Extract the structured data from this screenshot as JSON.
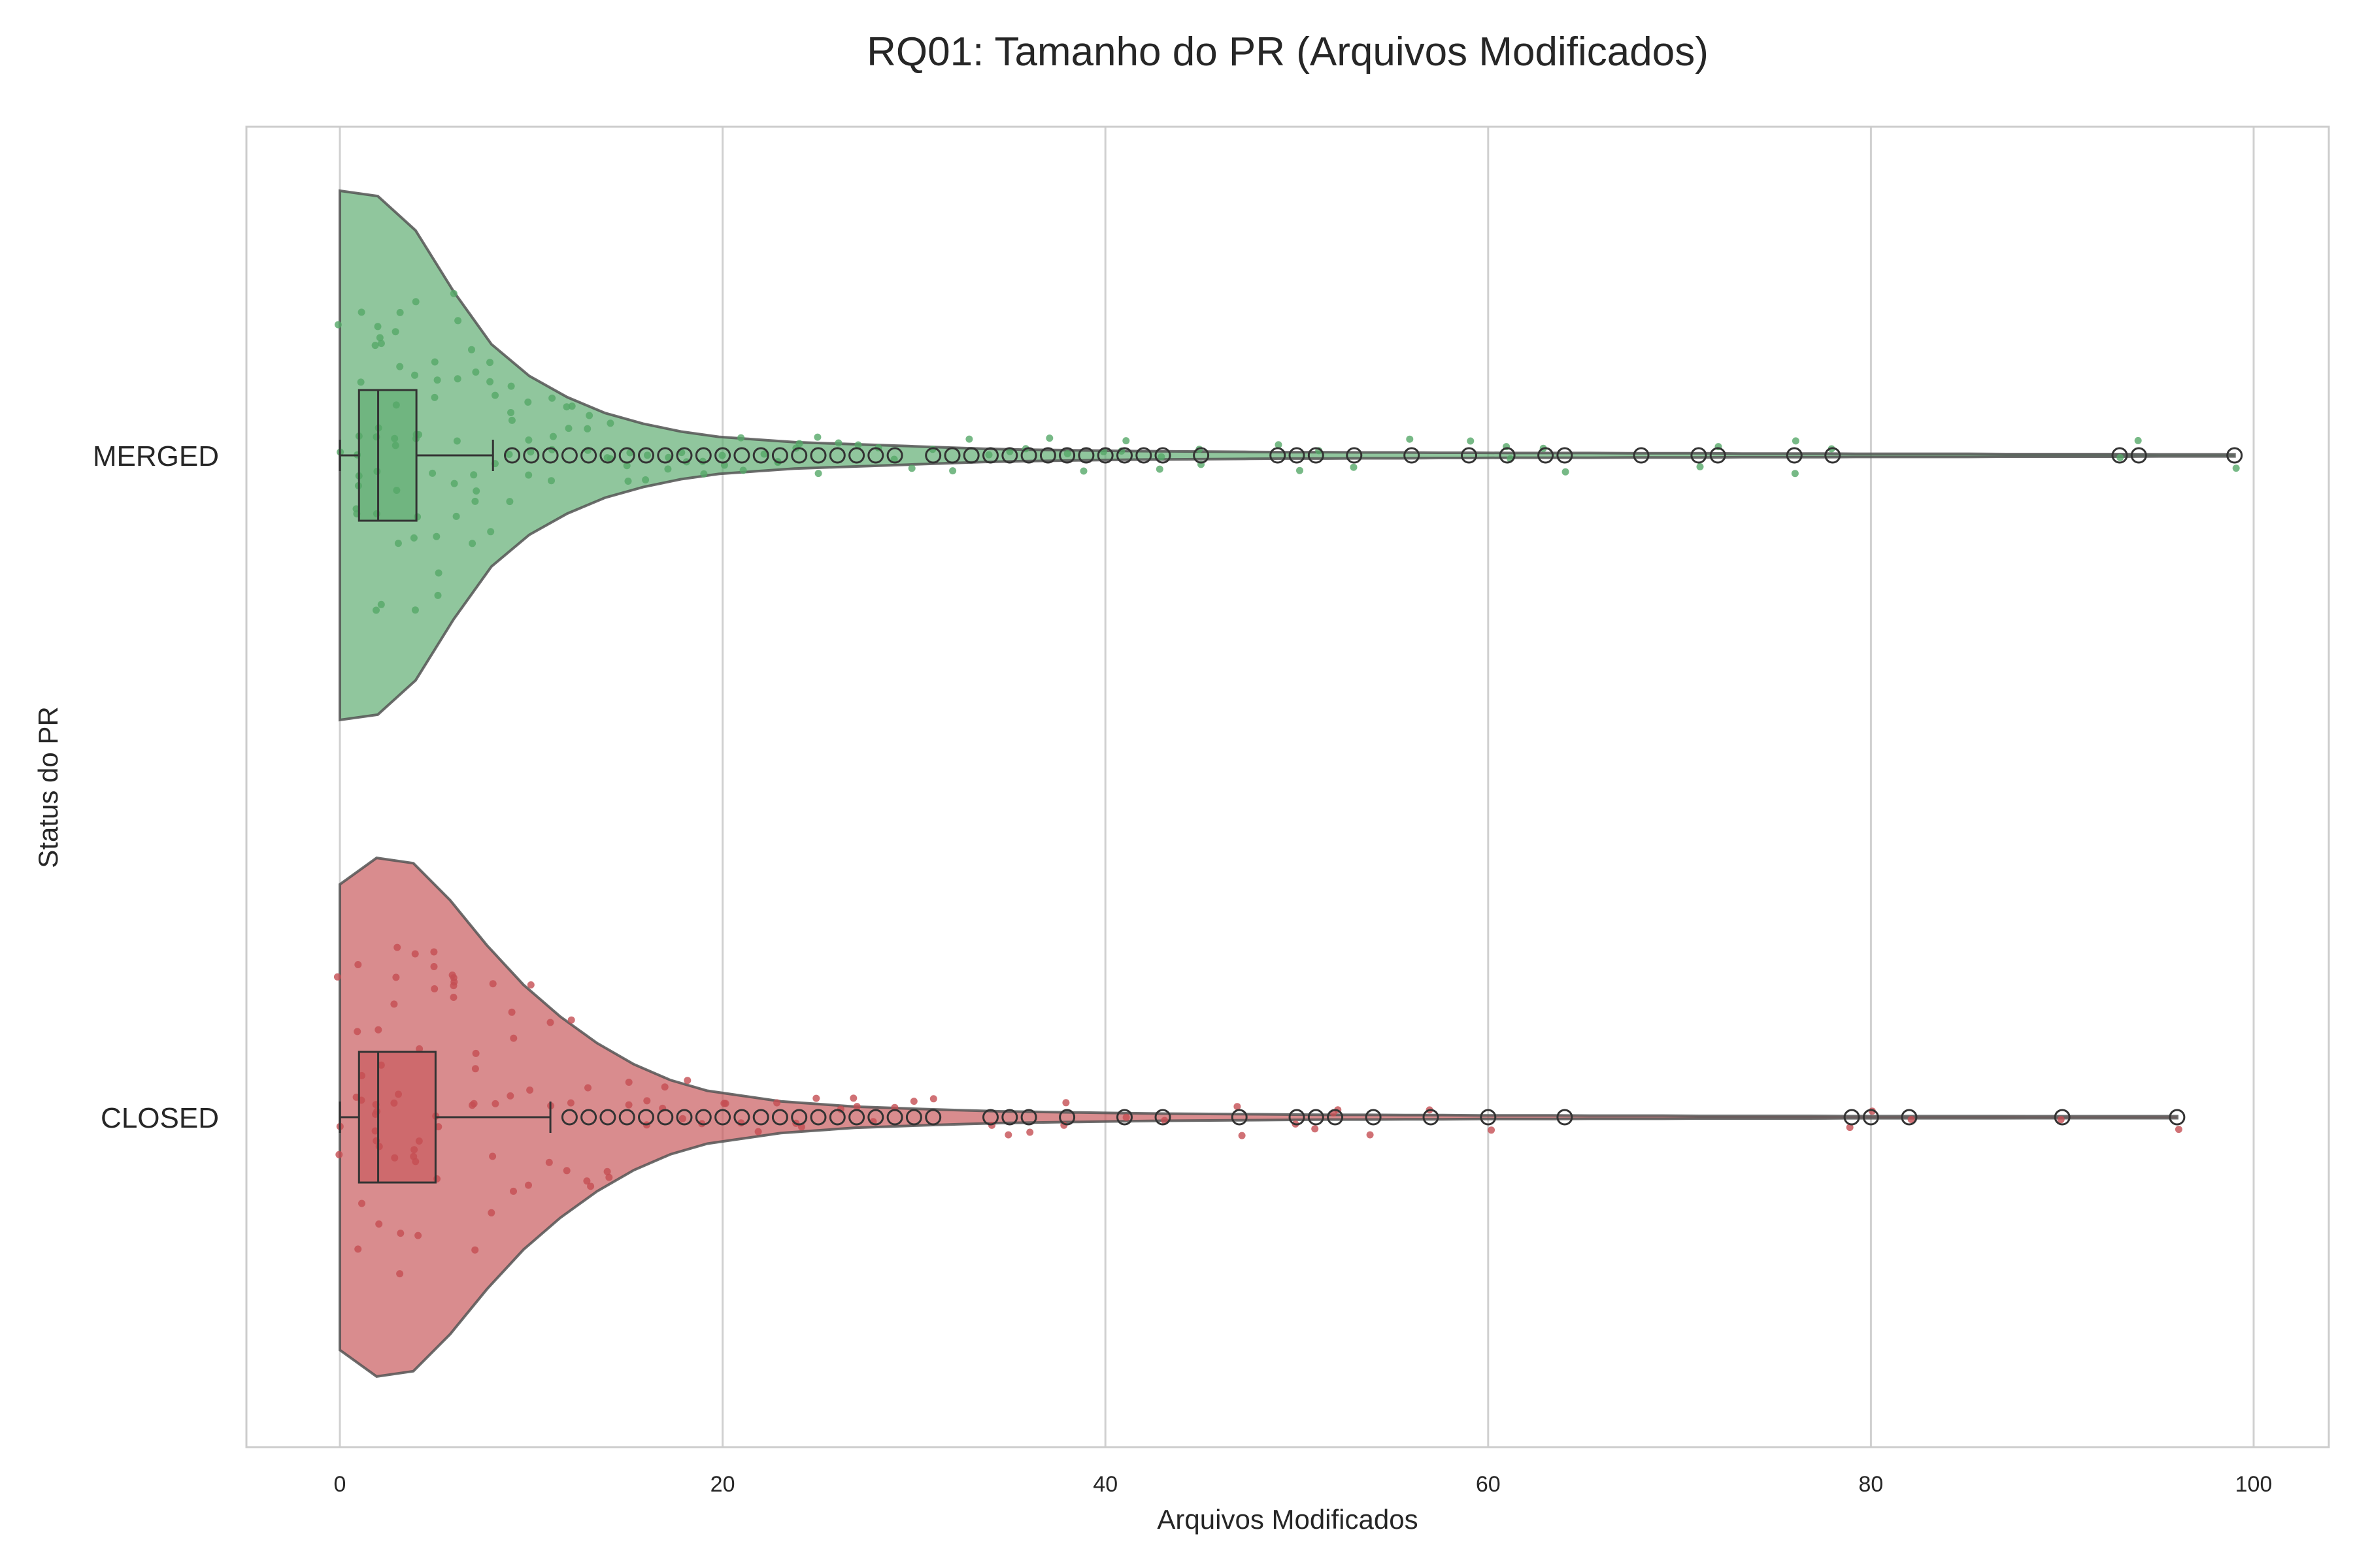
{
  "chart_data": {
    "type": "violin",
    "title": "RQ01: Tamanho do PR (Arquivos Modificados)",
    "xlabel": "Arquivos Modificados",
    "ylabel": "Status do PR",
    "xlim": [
      -5,
      104
    ],
    "xticks": [
      0,
      20,
      40,
      60,
      80,
      100
    ],
    "grid": "vertical",
    "legend": "none",
    "categories": [
      "MERGED",
      "CLOSED"
    ],
    "series": [
      {
        "category": "MERGED",
        "color": "#55a868",
        "box": {
          "whislo": 0,
          "q1": 1,
          "med": 2,
          "q3": 4,
          "whishi": 8
        },
        "outliers": [
          9,
          10,
          11,
          12,
          13,
          14,
          15,
          16,
          17,
          18,
          19,
          20,
          21,
          22,
          23,
          24,
          25,
          26,
          27,
          28,
          29,
          31,
          32,
          33,
          34,
          35,
          36,
          37,
          38,
          39,
          40,
          41,
          42,
          43,
          45,
          49,
          50,
          51,
          53,
          56,
          59,
          61,
          63,
          64,
          68,
          71,
          72,
          76,
          78,
          93,
          94,
          99
        ],
        "strip_x": [
          0,
          0,
          1,
          1,
          1,
          1,
          1,
          1,
          1,
          1,
          2,
          2,
          2,
          2,
          2,
          2,
          2,
          2,
          2,
          2,
          3,
          3,
          3,
          3,
          3,
          3,
          3,
          3,
          4,
          4,
          4,
          4,
          4,
          4,
          4,
          4,
          5,
          5,
          5,
          5,
          5,
          5,
          5,
          6,
          6,
          6,
          6,
          6,
          6,
          7,
          7,
          7,
          7,
          7,
          7,
          8,
          8,
          8,
          8,
          8,
          9,
          9,
          9,
          9,
          9,
          10,
          10,
          10,
          10,
          11,
          11,
          11,
          11,
          12,
          12,
          12,
          13,
          13,
          13,
          14,
          14,
          14,
          15,
          15,
          15,
          16,
          16,
          17,
          17,
          18,
          18,
          19,
          19,
          20,
          20,
          21,
          21,
          22,
          23,
          23,
          24,
          24,
          25,
          25,
          26,
          27,
          28,
          29,
          30,
          31,
          32,
          33,
          34,
          35,
          36,
          37,
          38,
          39,
          40,
          41,
          41,
          43,
          43,
          45,
          45,
          49,
          50,
          51,
          53,
          56,
          59,
          61,
          61,
          63,
          64,
          71,
          72,
          76,
          76,
          78,
          93,
          94,
          99
        ],
        "violin_width": [
          1.0,
          0.98,
          0.85,
          0.62,
          0.42,
          0.3,
          0.22,
          0.16,
          0.12,
          0.09,
          0.07,
          0.06,
          0.05,
          0.045,
          0.04,
          0.035,
          0.03,
          0.025,
          0.022,
          0.02,
          0.018,
          0.016,
          0.015,
          0.014,
          0.013,
          0.012,
          0.012,
          0.011,
          0.011,
          0.01,
          0.01,
          0.009,
          0.009,
          0.009,
          0.008,
          0.008,
          0.008,
          0.007,
          0.007,
          0.007,
          0.006,
          0.006,
          0.006,
          0.006,
          0.005,
          0.005,
          0.005,
          0.005,
          0.004,
          0.004,
          0.004
        ]
      },
      {
        "category": "CLOSED",
        "color": "#c44e52",
        "box": {
          "whislo": 0,
          "q1": 1,
          "med": 2,
          "q3": 5,
          "whishi": 11
        },
        "outliers": [
          12,
          13,
          14,
          15,
          16,
          17,
          18,
          19,
          20,
          21,
          22,
          23,
          24,
          25,
          26,
          27,
          28,
          29,
          30,
          31,
          34,
          35,
          36,
          38,
          41,
          43,
          47,
          50,
          51,
          52,
          54,
          57,
          60,
          64,
          79,
          80,
          82,
          90,
          96
        ],
        "strip_x": [
          0,
          0,
          0,
          1,
          1,
          1,
          1,
          1,
          1,
          1,
          2,
          2,
          2,
          2,
          2,
          2,
          2,
          2,
          2,
          3,
          3,
          3,
          3,
          3,
          3,
          3,
          3,
          4,
          4,
          4,
          4,
          4,
          4,
          4,
          5,
          5,
          5,
          5,
          5,
          5,
          6,
          6,
          6,
          6,
          6,
          7,
          7,
          7,
          7,
          7,
          8,
          8,
          8,
          8,
          9,
          9,
          9,
          9,
          10,
          10,
          10,
          11,
          11,
          11,
          12,
          12,
          12,
          13,
          13,
          13,
          14,
          14,
          15,
          15,
          16,
          16,
          17,
          17,
          18,
          18,
          19,
          20,
          20,
          21,
          22,
          23,
          24,
          24,
          25,
          26,
          27,
          27,
          28,
          29,
          30,
          31,
          34,
          35,
          36,
          38,
          38,
          41,
          43,
          47,
          47,
          50,
          51,
          52,
          52,
          54,
          57,
          60,
          79,
          80,
          82,
          90,
          96
        ],
        "violin_width": [
          0.88,
          0.98,
          0.96,
          0.82,
          0.65,
          0.5,
          0.38,
          0.28,
          0.2,
          0.14,
          0.1,
          0.08,
          0.06,
          0.05,
          0.04,
          0.035,
          0.03,
          0.026,
          0.022,
          0.02,
          0.018,
          0.016,
          0.014,
          0.013,
          0.012,
          0.011,
          0.01,
          0.009,
          0.009,
          0.008,
          0.008,
          0.007,
          0.007,
          0.007,
          0.006,
          0.006,
          0.006,
          0.005,
          0.005,
          0.005,
          0.005,
          0.004,
          0.004,
          0.004,
          0.004,
          0.004,
          0.003,
          0.003,
          0.003,
          0.003,
          0.003
        ]
      }
    ]
  }
}
